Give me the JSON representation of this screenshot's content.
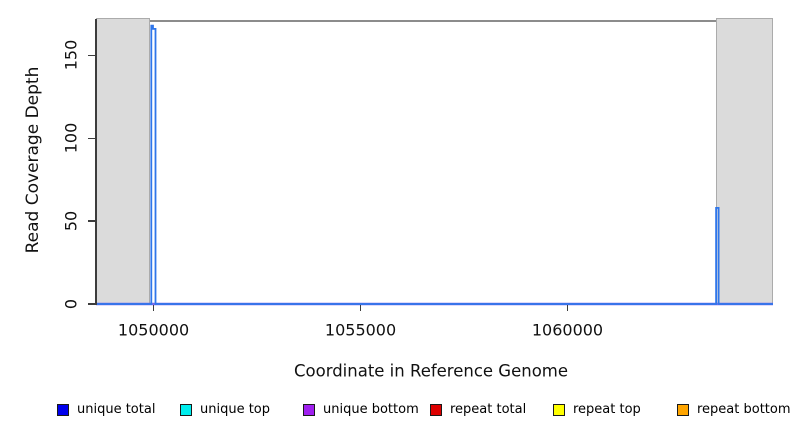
{
  "chart_data": {
    "type": "line",
    "title": "",
    "xlabel": "Coordinate in Reference Genome",
    "ylabel": "Read Coverage Depth",
    "xlim": [
      1048609,
      1064965
    ],
    "ylim": [
      0,
      172
    ],
    "grid": false,
    "legend_position": "bottom",
    "x_ticks": [
      {
        "value": 1050000,
        "label": "1050000"
      },
      {
        "value": 1055000,
        "label": "1055000"
      },
      {
        "value": 1060000,
        "label": "1060000"
      }
    ],
    "y_ticks": [
      {
        "value": 0,
        "label": "0"
      },
      {
        "value": 50,
        "label": "50"
      },
      {
        "value": 100,
        "label": "100"
      },
      {
        "value": 150,
        "label": "150"
      }
    ],
    "shaded_regions": [
      {
        "x_from": 1048609,
        "x_to": 1049903
      },
      {
        "x_from": 1063591,
        "x_to": 1064965
      }
    ],
    "band_fill": "#dbdbdb",
    "band_border": "#ababab",
    "series": [
      {
        "name": "unique bottom",
        "color": "#7b68ee",
        "line_width": 2.6,
        "points": [
          [
            1048609,
            0
          ],
          [
            1064965,
            0
          ]
        ]
      },
      {
        "name": "unique total",
        "color": "#2f76ea",
        "line_width": 1.8,
        "points": [
          [
            1048609,
            0
          ],
          [
            1049945,
            0
          ],
          [
            1049945,
            168
          ],
          [
            1049986,
            168
          ],
          [
            1049986,
            166
          ],
          [
            1050046,
            166
          ],
          [
            1050046,
            0
          ],
          [
            1063591,
            0
          ],
          [
            1063591,
            58
          ],
          [
            1063650,
            58
          ],
          [
            1063650,
            0
          ],
          [
            1064965,
            0
          ]
        ]
      }
    ],
    "legend": [
      {
        "label": "unique total",
        "color": "#0000ee"
      },
      {
        "label": "unique top",
        "color": "#00eeee"
      },
      {
        "label": "unique bottom",
        "color": "#a020f0"
      },
      {
        "label": "repeat total",
        "color": "#dd0000"
      },
      {
        "label": "repeat top",
        "color": "#ffff00"
      },
      {
        "label": "repeat bottom",
        "color": "#ffa500"
      }
    ]
  }
}
